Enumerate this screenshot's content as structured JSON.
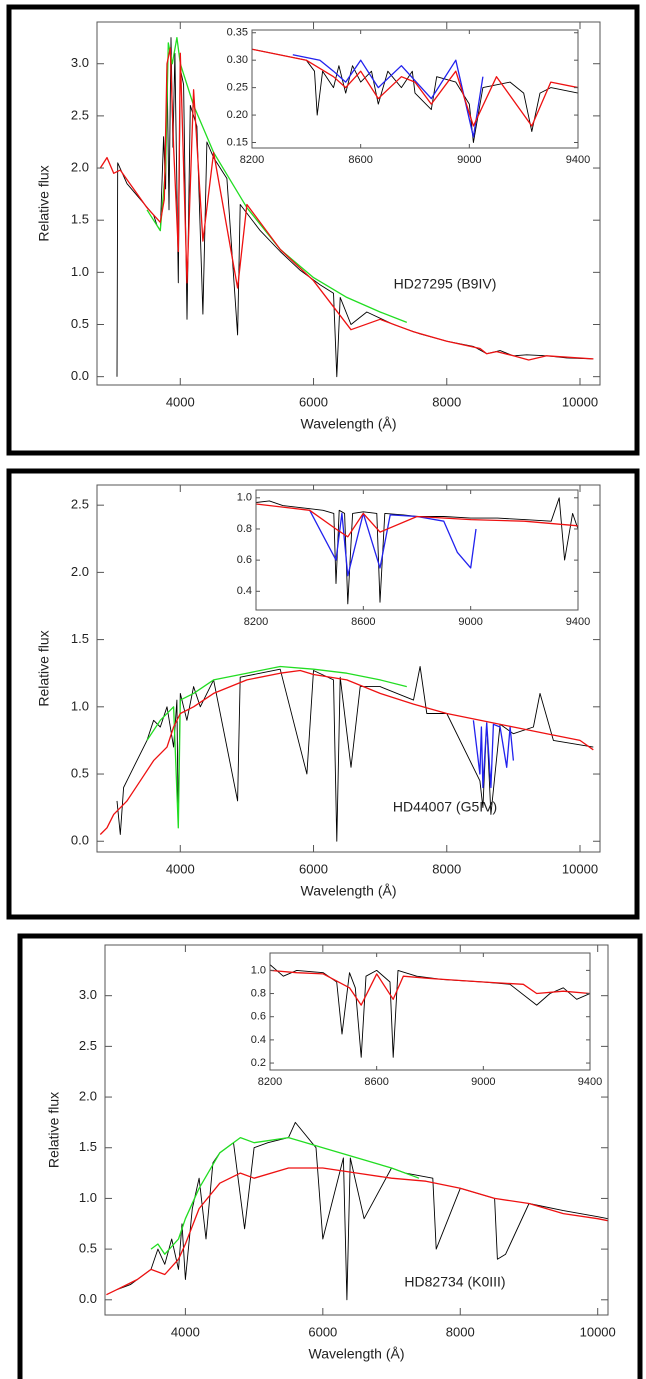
{
  "chart_data": [
    {
      "type": "line",
      "xlabel": "Wavelength (Å)",
      "ylabel": "Relative flux",
      "annotation": "HD27295 (B9IV)",
      "xlim": [
        2750,
        10300
      ],
      "ylim": [
        -0.08,
        3.4
      ],
      "xticks": [
        4000,
        6000,
        8000,
        10000
      ],
      "yticks": [
        {
          "value": 0,
          "label": "0.0"
        },
        0.5,
        {
          "value": 1,
          "label": "1.0"
        },
        1.5,
        {
          "value": 2,
          "label": "2.0"
        },
        2.5,
        {
          "value": 3,
          "label": "3.0"
        }
      ],
      "series": [
        {
          "color": "#000000",
          "x": [
            3050,
            3060,
            3200,
            3400,
            3600,
            3650,
            3700,
            3750,
            3780,
            3800,
            3830,
            3860,
            3890,
            3920,
            3970,
            4000,
            4050,
            4101,
            4150,
            4250,
            4340,
            4400,
            4500,
            4700,
            4861,
            4900,
            5200,
            5500,
            5800,
            6100,
            6300,
            6350,
            6400,
            6563,
            6800,
            7200,
            7600,
            8000,
            8400,
            8600,
            8800,
            9000,
            9200,
            9500,
            9800,
            10200
          ],
          "values": [
            0.0,
            2.05,
            1.85,
            1.7,
            1.55,
            1.45,
            1.4,
            2.3,
            1.8,
            3.0,
            1.6,
            3.25,
            2.2,
            3.1,
            0.9,
            2.95,
            2.8,
            0.55,
            2.6,
            2.4,
            0.6,
            2.25,
            2.1,
            1.9,
            0.4,
            1.65,
            1.4,
            1.2,
            1.02,
            0.88,
            0.8,
            0.0,
            0.76,
            0.5,
            0.62,
            0.5,
            0.41,
            0.34,
            0.29,
            0.22,
            0.25,
            0.2,
            0.21,
            0.2,
            0.18,
            0.17
          ]
        },
        {
          "color": "#22dd22",
          "x": [
            3500,
            3600,
            3700,
            3780,
            3820,
            3880,
            3950,
            4000,
            4200,
            4500,
            5000,
            5500,
            6000,
            6500,
            7000,
            7400
          ],
          "values": [
            1.6,
            1.5,
            1.4,
            2.0,
            3.2,
            3.0,
            3.25,
            3.0,
            2.6,
            2.15,
            1.62,
            1.22,
            0.95,
            0.76,
            0.62,
            0.52
          ]
        },
        {
          "color": "#ee1111",
          "x": [
            2800,
            2900,
            3000,
            3100,
            3300,
            3500,
            3700,
            3760,
            3800,
            3850,
            3900,
            3970,
            4000,
            4101,
            4200,
            4340,
            4500,
            4861,
            5000,
            5500,
            6000,
            6563,
            7000,
            7500,
            8000,
            8500,
            8600,
            8750,
            9000,
            9230,
            9500,
            10200
          ],
          "values": [
            2.0,
            2.1,
            1.95,
            1.98,
            1.8,
            1.62,
            1.48,
            1.7,
            3.0,
            3.15,
            2.2,
            1.2,
            3.1,
            0.9,
            2.75,
            1.3,
            2.15,
            0.85,
            1.65,
            1.22,
            0.92,
            0.45,
            0.55,
            0.43,
            0.34,
            0.27,
            0.22,
            0.24,
            0.2,
            0.16,
            0.2,
            0.17
          ]
        }
      ]
    },
    {
      "type": "line",
      "xlim": [
        8200,
        9400
      ],
      "ylim": [
        0.14,
        0.355
      ],
      "xticks": [
        8200,
        8600,
        9000,
        9400
      ],
      "yticks": [
        0.15,
        {
          "value": 0.2,
          "label": "0.20"
        },
        0.25,
        {
          "value": 0.3,
          "label": "0.30"
        },
        0.35
      ],
      "series": [
        {
          "color": "#000000",
          "x": [
            8200,
            8300,
            8400,
            8430,
            8440,
            8460,
            8500,
            8520,
            8545,
            8570,
            8600,
            8640,
            8665,
            8700,
            8750,
            8790,
            8800,
            8860,
            8880,
            8950,
            9000,
            9015,
            9050,
            9150,
            9200,
            9230,
            9260,
            9300,
            9400
          ],
          "values": [
            0.32,
            0.31,
            0.3,
            0.28,
            0.2,
            0.28,
            0.25,
            0.29,
            0.24,
            0.29,
            0.26,
            0.28,
            0.22,
            0.28,
            0.25,
            0.28,
            0.24,
            0.21,
            0.27,
            0.26,
            0.22,
            0.15,
            0.25,
            0.26,
            0.24,
            0.17,
            0.24,
            0.25,
            0.24
          ]
        },
        {
          "color": "#2222ee",
          "x": [
            8350,
            8450,
            8500,
            8545,
            8600,
            8665,
            8750,
            8860,
            8950,
            9015,
            9050
          ],
          "values": [
            0.31,
            0.3,
            0.28,
            0.26,
            0.3,
            0.25,
            0.29,
            0.23,
            0.3,
            0.16,
            0.27
          ]
        },
        {
          "color": "#ee1111",
          "x": [
            8200,
            8300,
            8400,
            8500,
            8545,
            8600,
            8665,
            8750,
            8800,
            8860,
            8950,
            9015,
            9100,
            9230,
            9300,
            9400
          ],
          "values": [
            0.32,
            0.31,
            0.3,
            0.27,
            0.25,
            0.28,
            0.23,
            0.27,
            0.26,
            0.22,
            0.28,
            0.18,
            0.27,
            0.18,
            0.26,
            0.25
          ]
        }
      ]
    },
    {
      "type": "line",
      "xlabel": "Wavelength (Å)",
      "ylabel": "Relative flux",
      "annotation": "HD44007 (G5IV)",
      "xlim": [
        2750,
        10300
      ],
      "ylim": [
        -0.08,
        2.65
      ],
      "xticks": [
        4000,
        6000,
        8000,
        10000
      ],
      "yticks": [
        {
          "value": 0,
          "label": "0.0"
        },
        0.5,
        {
          "value": 1,
          "label": "1.0"
        },
        1.5,
        {
          "value": 2,
          "label": "2.0"
        },
        2.5
      ],
      "series": [
        {
          "color": "#000000",
          "x": [
            3050,
            3100,
            3150,
            3300,
            3500,
            3600,
            3700,
            3800,
            3900,
            3950,
            3968,
            4000,
            4100,
            4200,
            4300,
            4500,
            4861,
            4900,
            5200,
            5500,
            5900,
            6000,
            6300,
            6350,
            6400,
            6563,
            6700,
            7000,
            7500,
            7600,
            7700,
            8000,
            8498,
            8542,
            8600,
            8662,
            8800,
            9000,
            9300,
            9400,
            9600,
            10200
          ],
          "values": [
            0.3,
            0.05,
            0.4,
            0.55,
            0.75,
            0.9,
            0.85,
            1.0,
            0.7,
            1.05,
            0.2,
            1.1,
            0.9,
            1.15,
            1.0,
            1.2,
            0.3,
            1.22,
            1.25,
            1.28,
            0.5,
            1.27,
            1.2,
            0.0,
            1.22,
            0.55,
            1.15,
            1.15,
            1.05,
            1.3,
            0.95,
            0.95,
            0.45,
            0.25,
            0.88,
            0.2,
            0.87,
            0.8,
            0.85,
            1.1,
            0.75,
            0.7
          ]
        },
        {
          "color": "#22dd22",
          "x": [
            3500,
            3700,
            3900,
            3970,
            4000,
            4200,
            4500,
            5000,
            5500,
            6000,
            6500,
            7000,
            7400
          ],
          "values": [
            0.75,
            0.9,
            1.0,
            0.1,
            1.05,
            1.1,
            1.2,
            1.25,
            1.3,
            1.28,
            1.25,
            1.2,
            1.15
          ]
        },
        {
          "color": "#2222ee",
          "x": [
            8400,
            8498,
            8520,
            8542,
            8600,
            8662,
            8700,
            8800,
            8900,
            8950,
            9000
          ],
          "values": [
            0.9,
            0.5,
            0.85,
            0.4,
            0.88,
            0.4,
            0.87,
            0.85,
            0.55,
            0.85,
            0.6
          ]
        },
        {
          "color": "#ee1111",
          "x": [
            2800,
            2900,
            3000,
            3200,
            3400,
            3600,
            3800,
            3900,
            4000,
            4200,
            4500,
            5000,
            5500,
            5800,
            6000,
            6500,
            7000,
            7500,
            8000,
            8500,
            9000,
            9500,
            10000,
            10200
          ],
          "values": [
            0.05,
            0.1,
            0.2,
            0.3,
            0.45,
            0.6,
            0.7,
            0.85,
            0.95,
            1.0,
            1.1,
            1.2,
            1.25,
            1.27,
            1.24,
            1.2,
            1.1,
            1.02,
            0.95,
            0.9,
            0.85,
            0.8,
            0.75,
            0.68
          ]
        }
      ]
    },
    {
      "type": "line",
      "xlim": [
        8200,
        9400
      ],
      "ylim": [
        0.28,
        1.05
      ],
      "xticks": [
        8200,
        8600,
        9000,
        9400
      ],
      "yticks": [
        0.4,
        0.6,
        0.8,
        {
          "value": 1,
          "label": "1.0"
        }
      ],
      "series": [
        {
          "color": "#000000",
          "x": [
            8200,
            8250,
            8300,
            8400,
            8450,
            8490,
            8498,
            8510,
            8530,
            8542,
            8560,
            8600,
            8650,
            8662,
            8680,
            8750,
            8800,
            8900,
            9000,
            9100,
            9200,
            9300,
            9330,
            9350,
            9380,
            9400
          ],
          "values": [
            0.97,
            0.98,
            0.95,
            0.93,
            0.92,
            0.9,
            0.45,
            0.92,
            0.9,
            0.32,
            0.9,
            0.91,
            0.9,
            0.33,
            0.9,
            0.89,
            0.88,
            0.88,
            0.87,
            0.87,
            0.86,
            0.85,
            1.0,
            0.6,
            0.9,
            0.8
          ]
        },
        {
          "color": "#2222ee",
          "x": [
            8400,
            8498,
            8520,
            8542,
            8600,
            8662,
            8700,
            8800,
            8900,
            8950,
            9000,
            9020
          ],
          "values": [
            0.92,
            0.6,
            0.9,
            0.5,
            0.9,
            0.55,
            0.89,
            0.88,
            0.85,
            0.65,
            0.55,
            0.8
          ]
        },
        {
          "color": "#ee1111",
          "x": [
            8200,
            8300,
            8400,
            8498,
            8542,
            8600,
            8662,
            8800,
            9000,
            9200,
            9400
          ],
          "values": [
            0.96,
            0.94,
            0.92,
            0.8,
            0.75,
            0.9,
            0.78,
            0.88,
            0.86,
            0.85,
            0.82
          ]
        }
      ]
    },
    {
      "type": "line",
      "xlabel": "Wavelength (Å)",
      "ylabel": "Relative flux",
      "annotation": "HD82734 (K0III)",
      "xlim": [
        2830,
        10150
      ],
      "ylim": [
        -0.15,
        3.5
      ],
      "xticks": [
        4000,
        6000,
        8000,
        10000
      ],
      "yticks": [
        {
          "value": 0,
          "label": "0.0"
        },
        0.5,
        {
          "value": 1,
          "label": "1.0"
        },
        1.5,
        {
          "value": 2,
          "label": "2.0"
        },
        2.5,
        {
          "value": 3,
          "label": "3.0"
        }
      ],
      "series": [
        {
          "color": "#000000",
          "x": [
            3000,
            3200,
            3500,
            3600,
            3700,
            3800,
            3900,
            3950,
            4000,
            4100,
            4200,
            4300,
            4400,
            4500,
            4700,
            4861,
            5000,
            5200,
            5500,
            5600,
            5900,
            6000,
            6300,
            6350,
            6400,
            6600,
            7000,
            7200,
            7600,
            7650,
            8000,
            8500,
            8540,
            8660,
            9000,
            9500,
            10000,
            10150
          ],
          "values": [
            0.1,
            0.15,
            0.3,
            0.5,
            0.35,
            0.6,
            0.3,
            0.75,
            0.2,
            0.9,
            1.2,
            0.6,
            1.35,
            1.45,
            1.55,
            0.7,
            1.5,
            1.55,
            1.6,
            1.75,
            1.5,
            0.6,
            1.4,
            0.0,
            1.4,
            0.8,
            1.3,
            1.25,
            1.2,
            0.5,
            1.1,
            1.0,
            0.4,
            0.45,
            0.95,
            0.88,
            0.82,
            0.8
          ]
        },
        {
          "color": "#22dd22",
          "x": [
            3500,
            3600,
            3700,
            3900,
            4000,
            4200,
            4500,
            4800,
            5000,
            5500,
            6000,
            6500,
            7000,
            7400
          ],
          "values": [
            0.5,
            0.55,
            0.45,
            0.6,
            0.8,
            1.1,
            1.45,
            1.6,
            1.55,
            1.6,
            1.5,
            1.4,
            1.3,
            1.2
          ]
        },
        {
          "color": "#ee1111",
          "x": [
            2850,
            3000,
            3300,
            3500,
            3700,
            3900,
            4000,
            4200,
            4500,
            4800,
            5000,
            5500,
            6000,
            6500,
            7000,
            7500,
            8000,
            8500,
            9000,
            9500,
            10000,
            10150
          ],
          "values": [
            0.05,
            0.1,
            0.2,
            0.3,
            0.25,
            0.4,
            0.55,
            0.9,
            1.15,
            1.25,
            1.2,
            1.3,
            1.3,
            1.25,
            1.2,
            1.17,
            1.1,
            1.0,
            0.95,
            0.85,
            0.8,
            0.78
          ]
        }
      ]
    },
    {
      "type": "line",
      "xlim": [
        8200,
        9400
      ],
      "ylim": [
        0.14,
        1.15
      ],
      "xticks": [
        8200,
        8600,
        9000,
        9400
      ],
      "yticks": [
        0.2,
        0.4,
        0.6,
        0.8,
        {
          "value": 1,
          "label": "1.0"
        }
      ],
      "series": [
        {
          "color": "#000000",
          "x": [
            8200,
            8250,
            8300,
            8400,
            8450,
            8470,
            8498,
            8520,
            8542,
            8560,
            8600,
            8650,
            8662,
            8680,
            8750,
            8850,
            9000,
            9100,
            9200,
            9250,
            9300,
            9350,
            9400
          ],
          "values": [
            1.05,
            0.95,
            1.0,
            0.98,
            0.9,
            0.45,
            0.98,
            0.85,
            0.25,
            0.95,
            1.0,
            0.9,
            0.25,
            1.0,
            0.95,
            0.92,
            0.9,
            0.88,
            0.7,
            0.8,
            0.85,
            0.75,
            0.8
          ]
        },
        {
          "color": "#ee1111",
          "x": [
            8200,
            8300,
            8400,
            8498,
            8542,
            8600,
            8662,
            8700,
            8800,
            9000,
            9150,
            9200,
            9300,
            9400
          ],
          "values": [
            1.0,
            0.98,
            0.97,
            0.85,
            0.7,
            0.97,
            0.75,
            0.95,
            0.93,
            0.9,
            0.88,
            0.8,
            0.82,
            0.8
          ]
        }
      ]
    }
  ]
}
